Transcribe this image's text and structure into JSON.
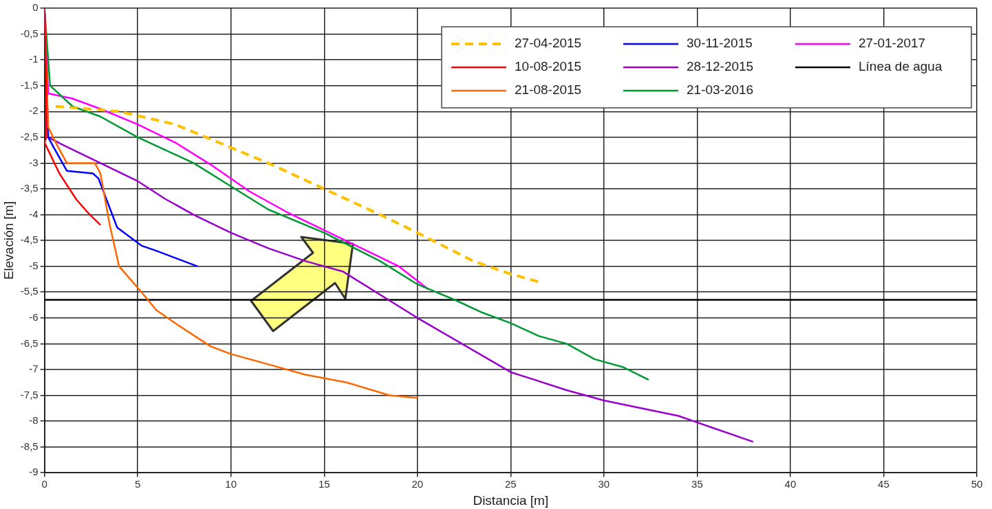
{
  "chart_data": {
    "type": "line",
    "xlabel": "Distancia [m]",
    "ylabel": "Elevación [m]",
    "xlim": [
      0,
      50
    ],
    "xticks": [
      0,
      5,
      10,
      15,
      20,
      25,
      30,
      35,
      40,
      45,
      50
    ],
    "ylim": [
      -9,
      0
    ],
    "yticks": [
      {
        "value": -9,
        "label": "-9"
      },
      {
        "value": -8.5,
        "label": "-8,5"
      },
      {
        "value": -8,
        "label": "-8"
      },
      {
        "value": -7.5,
        "label": "-7,5"
      },
      {
        "value": -7,
        "label": "-7"
      },
      {
        "value": -6.5,
        "label": "-6,5"
      },
      {
        "value": -6,
        "label": "-6"
      },
      {
        "value": -5.5,
        "label": "-5,5"
      },
      {
        "value": -5,
        "label": "-5"
      },
      {
        "value": -4.5,
        "label": "-4,5"
      },
      {
        "value": -4,
        "label": "-4"
      },
      {
        "value": -3.5,
        "label": "-3,5"
      },
      {
        "value": -3,
        "label": "-3"
      },
      {
        "value": -2.5,
        "label": "-2,5"
      },
      {
        "value": -2,
        "label": "-2"
      },
      {
        "value": -1.5,
        "label": "-1,5"
      },
      {
        "value": -1,
        "label": "-1"
      },
      {
        "value": -0.5,
        "label": "-0,5"
      },
      {
        "value": 0,
        "label": "0"
      }
    ],
    "grid": true,
    "legend": "top right",
    "marker": "none",
    "series": [
      {
        "name": "27-04-2015",
        "color": "#ffc000",
        "line_style": "dashed",
        "x": [
          0.6,
          4,
          7,
          10,
          12,
          15,
          18,
          20,
          23,
          25,
          26.5
        ],
        "values": [
          -1.9,
          -2.0,
          -2.25,
          -2.7,
          -3.0,
          -3.5,
          -4.0,
          -4.35,
          -4.9,
          -5.15,
          -5.3
        ]
      },
      {
        "name": "10-08-2015",
        "color": "#ff0000",
        "line_style": "solid",
        "x": [
          0,
          0.1,
          0.1,
          0,
          0.8,
          1.7,
          2.3,
          3
        ],
        "values": [
          0,
          -1.5,
          -2.5,
          -2.6,
          -3.2,
          -3.7,
          -3.95,
          -4.2
        ]
      },
      {
        "name": "21-08-2015",
        "color": "#ff6600",
        "line_style": "solid",
        "x": [
          0,
          0.2,
          0.6,
          1.2,
          2.7,
          3,
          3.5,
          4,
          5.2,
          6,
          7,
          8.9,
          10,
          12,
          14,
          16.2,
          18.5,
          20
        ],
        "values": [
          0,
          -2.3,
          -2.6,
          -3.0,
          -3.0,
          -3.2,
          -4.2,
          -5.0,
          -5.5,
          -5.85,
          -6.1,
          -6.55,
          -6.7,
          -6.9,
          -7.1,
          -7.25,
          -7.5,
          -7.55
        ]
      },
      {
        "name": "30-11-2015",
        "color": "#0000ff",
        "line_style": "solid",
        "x": [
          0,
          0.2,
          0.5,
          1.2,
          2.6,
          2.9,
          3.9,
          5.2,
          6,
          8.2
        ],
        "values": [
          0,
          -2.5,
          -2.7,
          -3.15,
          -3.2,
          -3.3,
          -4.25,
          -4.6,
          -4.7,
          -5.0
        ]
      },
      {
        "name": "28-12-2015",
        "color": "#9900cc",
        "line_style": "solid",
        "x": [
          0,
          0.2,
          1,
          3,
          5,
          6.5,
          8,
          10,
          12,
          14,
          16,
          20,
          25,
          28,
          30,
          34,
          38
        ],
        "values": [
          0,
          -2.5,
          -2.65,
          -3.0,
          -3.35,
          -3.7,
          -4.0,
          -4.35,
          -4.65,
          -4.9,
          -5.1,
          -6.0,
          -7.05,
          -7.4,
          -7.6,
          -7.9,
          -8.4
        ]
      },
      {
        "name": "21-03-2016",
        "color": "#009933",
        "line_style": "solid",
        "x": [
          0,
          0.3,
          1.5,
          3,
          5,
          8,
          10,
          12,
          15,
          18,
          20,
          22,
          23.5,
          25,
          26.5,
          28,
          29.5,
          31,
          32.4
        ],
        "values": [
          0,
          -1.5,
          -1.9,
          -2.1,
          -2.5,
          -3.0,
          -3.45,
          -3.9,
          -4.35,
          -4.9,
          -5.35,
          -5.65,
          -5.9,
          -6.1,
          -6.35,
          -6.5,
          -6.8,
          -6.95,
          -7.2
        ]
      },
      {
        "name": "27-01-2017",
        "color": "#ff00ff",
        "line_style": "solid",
        "x": [
          0,
          0.2,
          1.5,
          3,
          5,
          7,
          9,
          11,
          13,
          15,
          17,
          19,
          20.6
        ],
        "values": [
          0,
          -1.65,
          -1.75,
          -1.95,
          -2.25,
          -2.6,
          -3.05,
          -3.55,
          -3.95,
          -4.3,
          -4.65,
          -5.0,
          -5.45
        ]
      },
      {
        "name": "Línea de agua",
        "color": "#000000",
        "line_style": "solid",
        "x": [
          0,
          50
        ],
        "values": [
          -5.65,
          -5.65
        ]
      }
    ]
  }
}
